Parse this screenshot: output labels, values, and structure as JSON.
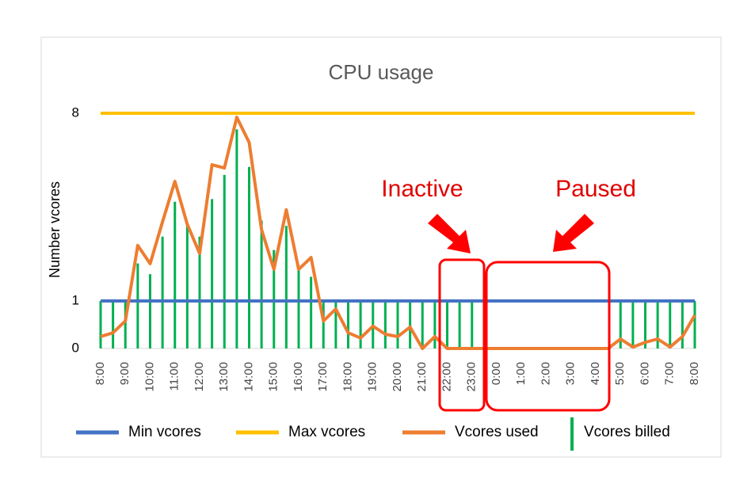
{
  "chart_data": {
    "type": "line",
    "title": "CPU usage",
    "y_label": "Number vcores",
    "categories": [
      "8:00",
      null,
      "9:00",
      null,
      "10:00",
      null,
      "11:00",
      null,
      "12:00",
      null,
      "13:00",
      null,
      "14:00",
      null,
      "15:00",
      null,
      "16:00",
      null,
      "17:00",
      null,
      "18:00",
      null,
      "19:00",
      null,
      "20:00",
      null,
      "21:00",
      null,
      "22:00",
      null,
      "23:00",
      null,
      "0:00",
      null,
      "1:00",
      null,
      "2:00",
      null,
      "3:00",
      null,
      "4:00",
      null,
      "5:00",
      null,
      "6:00",
      null,
      "7:00",
      null,
      "8:00"
    ],
    "ylim": [
      0,
      8
    ],
    "yticks": [
      0,
      1,
      8
    ],
    "series": [
      {
        "name": "Min vcores",
        "type": "line",
        "color": "#4472c4",
        "values": [
          1,
          1,
          1,
          1,
          1,
          1,
          1,
          1,
          1,
          1,
          1,
          1,
          1,
          1,
          1,
          1,
          1,
          1,
          1,
          1,
          1,
          1,
          1,
          1,
          1,
          1,
          1,
          1,
          1,
          1,
          1,
          1,
          1,
          1,
          1,
          1,
          1,
          1,
          1,
          1,
          1,
          1,
          1,
          1,
          1,
          1,
          1,
          1,
          1
        ]
      },
      {
        "name": "Max vcores",
        "type": "line",
        "color": "#ffc000",
        "values": [
          8,
          8,
          8,
          8,
          8,
          8,
          8,
          8,
          8,
          8,
          8,
          8,
          8,
          8,
          8,
          8,
          8,
          8,
          8,
          8,
          8,
          8,
          8,
          8,
          8,
          8,
          8,
          8,
          8,
          8,
          8,
          8,
          8,
          8,
          8,
          8,
          8,
          8,
          8,
          8,
          8,
          8,
          8,
          8,
          8,
          8,
          8,
          8,
          8
        ]
      },
      {
        "name": "Vcores used",
        "type": "line",
        "color": "#ed7d31",
        "values": [
          0.25,
          0.33,
          0.58,
          3.07,
          2.39,
          3.95,
          5.46,
          3.86,
          2.77,
          6.08,
          5.96,
          7.85,
          6.91,
          3.66,
          2.18,
          4.4,
          2.18,
          2.62,
          0.58,
          0.83,
          0.33,
          0.22,
          0.47,
          0.3,
          0.25,
          0.45,
          0,
          0.25,
          0,
          0,
          0,
          0,
          0,
          0,
          0,
          0,
          0,
          0,
          0,
          0,
          0,
          0,
          0.2,
          0.03,
          0.13,
          0.2,
          0.03,
          0.25,
          0.7
        ]
      },
      {
        "name": "Vcores billed",
        "type": "bar",
        "color": "#00b050",
        "values": [
          1,
          1,
          1,
          2.4,
          2,
          3.4,
          4.7,
          3.9,
          3.4,
          4.8,
          5.7,
          7.4,
          6,
          4,
          2.9,
          3.8,
          2.2,
          1.9,
          1,
          1,
          1,
          1,
          1,
          1,
          1,
          1,
          1,
          1,
          1,
          1,
          1,
          1,
          0,
          0,
          0,
          0,
          0,
          0,
          0,
          0,
          0,
          0,
          1,
          1,
          1,
          1,
          1,
          1,
          1
        ]
      }
    ],
    "annotations": [
      "Inactive",
      "Paused"
    ]
  }
}
